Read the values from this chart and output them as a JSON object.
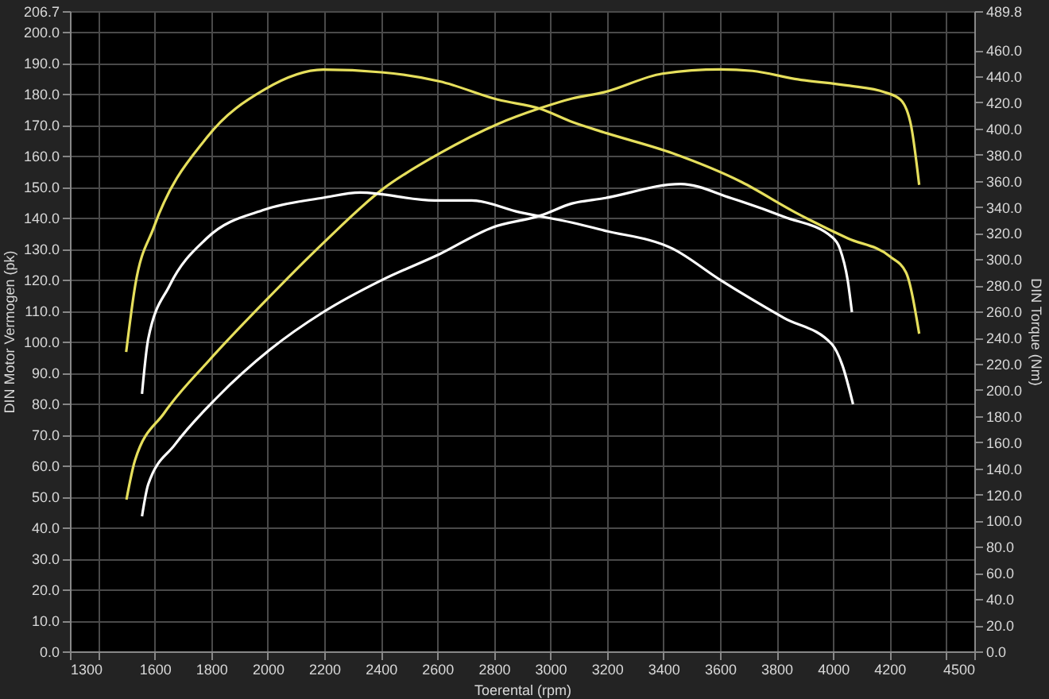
{
  "chart_data": {
    "type": "line",
    "xlabel": "Toerental (rpm)",
    "ylabel": "DIN Motor Vermogen (pk)",
    "y2label": "DIN Torque (Nm)",
    "xlim": [
      1300,
      4500
    ],
    "xticks": [
      1300,
      {
        "value": 1400,
        "label": null
      },
      1600,
      1800,
      2000,
      2200,
      2400,
      2600,
      2800,
      3000,
      3200,
      3400,
      3600,
      3800,
      4000,
      4200,
      {
        "value": 4400,
        "label": null
      },
      4500
    ],
    "ylim": [
      0,
      206.7
    ],
    "yticks": [
      {
        "value": 0,
        "label": "0.0"
      },
      {
        "value": 10,
        "label": "10.0"
      },
      {
        "value": 20,
        "label": "20.0"
      },
      {
        "value": 30,
        "label": "30.0"
      },
      {
        "value": 40,
        "label": "40.0"
      },
      {
        "value": 50,
        "label": "50.0"
      },
      {
        "value": 60,
        "label": "60.0"
      },
      {
        "value": 70,
        "label": "70.0"
      },
      {
        "value": 80,
        "label": "80.0"
      },
      {
        "value": 90,
        "label": "90.0"
      },
      {
        "value": 100,
        "label": "100.0"
      },
      {
        "value": 110,
        "label": "110.0"
      },
      {
        "value": 120,
        "label": "120.0"
      },
      {
        "value": 130,
        "label": "130.0"
      },
      {
        "value": 140,
        "label": "140.0"
      },
      {
        "value": 150,
        "label": "150.0"
      },
      {
        "value": 160,
        "label": "160.0"
      },
      {
        "value": 170,
        "label": "170.0"
      },
      {
        "value": 180,
        "label": "180.0"
      },
      {
        "value": 190,
        "label": "190.0"
      },
      {
        "value": 200,
        "label": "200.0"
      },
      {
        "value": 206.7,
        "label": "206.7"
      }
    ],
    "y2lim": [
      0,
      489.8
    ],
    "y2ticks": [
      {
        "value": 0,
        "label": "0.0"
      },
      {
        "value": 20,
        "label": "20.0"
      },
      {
        "value": 40,
        "label": "40.0"
      },
      {
        "value": 60,
        "label": "60.0"
      },
      {
        "value": 80,
        "label": "80.0"
      },
      {
        "value": 100,
        "label": "100.0"
      },
      {
        "value": 120,
        "label": "120.0"
      },
      {
        "value": 140,
        "label": "140.0"
      },
      {
        "value": 160,
        "label": "160.0"
      },
      {
        "value": 180,
        "label": "180.0"
      },
      {
        "value": 200,
        "label": "200.0"
      },
      {
        "value": 220,
        "label": "220.0"
      },
      {
        "value": 240,
        "label": "240.0"
      },
      {
        "value": 260,
        "label": "260.0"
      },
      {
        "value": 280,
        "label": "280.0"
      },
      {
        "value": 300,
        "label": "300.0"
      },
      {
        "value": 320,
        "label": "320.0"
      },
      {
        "value": 340,
        "label": "340.0"
      },
      {
        "value": 360,
        "label": "360.0"
      },
      {
        "value": 380,
        "label": "380.0"
      },
      {
        "value": 400,
        "label": "400.0"
      },
      {
        "value": 420,
        "label": "420.0"
      },
      {
        "value": 440,
        "label": "440.0"
      },
      {
        "value": 460,
        "label": "460.0"
      },
      {
        "value": 489.8,
        "label": "489.8"
      }
    ],
    "grid": true,
    "marker": "none",
    "line_style": "solid",
    "series": [
      {
        "color": "#e6df5c",
        "x": [
          1500,
          1530,
          1634,
          1793,
          1990,
          2196,
          2402,
          2609,
          2815,
          2965,
          3077,
          3190,
          3396,
          3602,
          3715,
          3865,
          4052,
          4184,
          4240,
          4277,
          4305
        ],
        "values": [
          49,
          61.6,
          77,
          94,
          113,
          131.8,
          148.9,
          160.8,
          170.3,
          175.4,
          178.5,
          180.5,
          186.5,
          187.9,
          187.4,
          184.8,
          182.7,
          180.5,
          178,
          169.4,
          150.6
        ]
      },
      {
        "color": "#ffffff",
        "x": [
          1555,
          1577,
          1671,
          1821,
          2009,
          2196,
          2402,
          2609,
          2796,
          2965,
          3077,
          3190,
          3461,
          3640,
          3827,
          3996,
          4024,
          4052,
          4067
        ],
        "values": [
          43.6,
          53.9,
          66.7,
          82,
          97.5,
          109.5,
          119.8,
          128.3,
          136.9,
          140.7,
          144.6,
          146.3,
          150.9,
          146.3,
          140.3,
          133.8,
          130.1,
          119.8,
          109.5
        ]
      },
      {
        "color": "#e6df5c",
        "axis": "y2",
        "x": [
          1499,
          1531,
          1596,
          1784,
          1990,
          2196,
          2402,
          2609,
          2815,
          2965,
          3077,
          3190,
          3433,
          3677,
          3865,
          4052,
          4202,
          4258,
          4305
        ],
        "values": [
          229,
          280,
          324,
          393,
          430,
          445,
          443,
          436,
          422,
          415,
          405,
          397,
          381,
          359,
          336,
          316,
          302,
          290,
          243
        ]
      },
      {
        "color": "#ffffff",
        "axis": "y2",
        "x": [
          1555,
          1577,
          1653,
          1784,
          1990,
          2196,
          2327,
          2590,
          2721,
          2890,
          3077,
          3190,
          3433,
          3602,
          3827,
          3996,
          4033,
          4071
        ],
        "values": [
          197,
          239,
          280,
          316,
          338,
          347,
          351,
          345,
          345,
          336,
          328,
          322,
          308,
          284,
          255,
          235,
          219,
          189
        ]
      }
    ]
  }
}
